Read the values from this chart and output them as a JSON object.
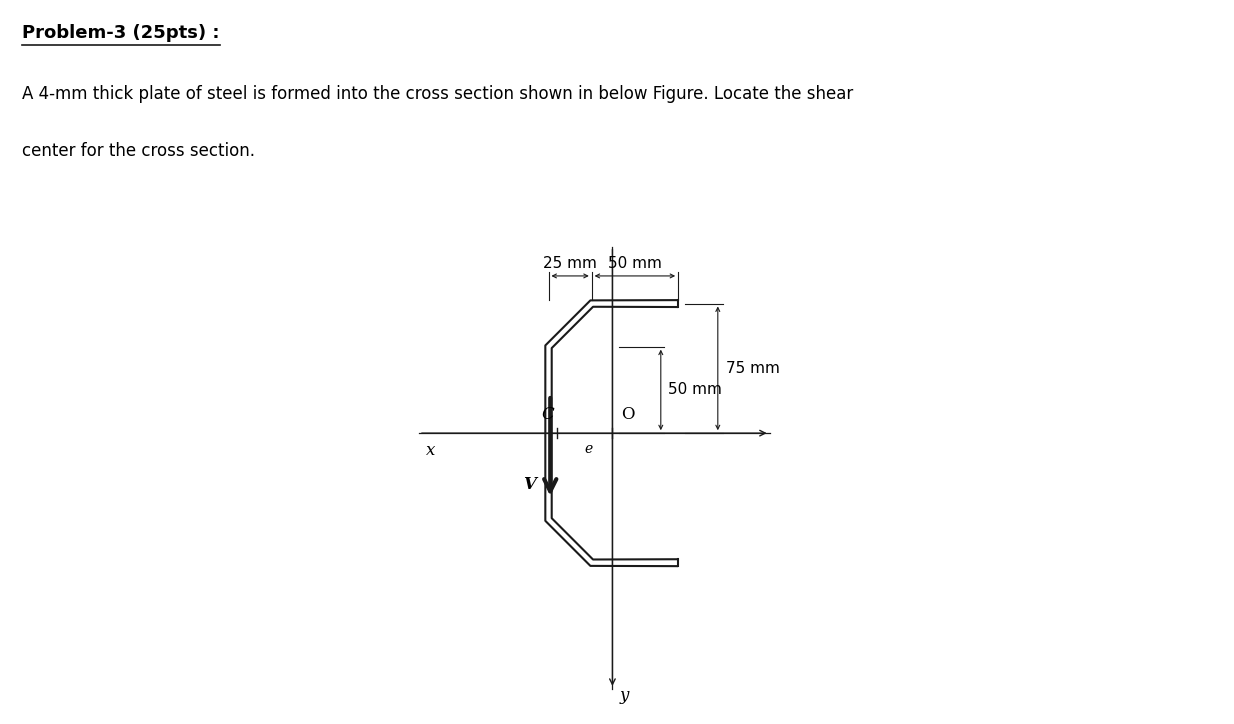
{
  "title": "Problem-3 (25pts) :",
  "body_line1": "A 4-mm thick plate of steel is formed into the cross section shown in below Figure. Locate the shear",
  "body_line2": "center for the cross section.",
  "dim_25mm": "25 mm",
  "dim_50mm_top": "50 mm",
  "dim_75mm": "75 mm",
  "dim_50mm_mid": "50 mm",
  "label_C": "C",
  "label_O": "O",
  "label_x": "x",
  "label_e": "e",
  "label_V": "V",
  "label_y": "y",
  "line_color": "#1a1a1a",
  "bg_color": "#ffffff",
  "thickness": 4,
  "figsize": [
    12.34,
    7.24
  ],
  "dpi": 100,
  "plate_cl": [
    [
      75,
      75
    ],
    [
      25,
      75
    ],
    [
      0,
      50
    ],
    [
      0,
      -50
    ],
    [
      25,
      -75
    ],
    [
      75,
      -75
    ]
  ],
  "O_x": 37,
  "C_x": 5,
  "xlim": [
    -80,
    145
  ],
  "ylim": [
    -160,
    125
  ]
}
